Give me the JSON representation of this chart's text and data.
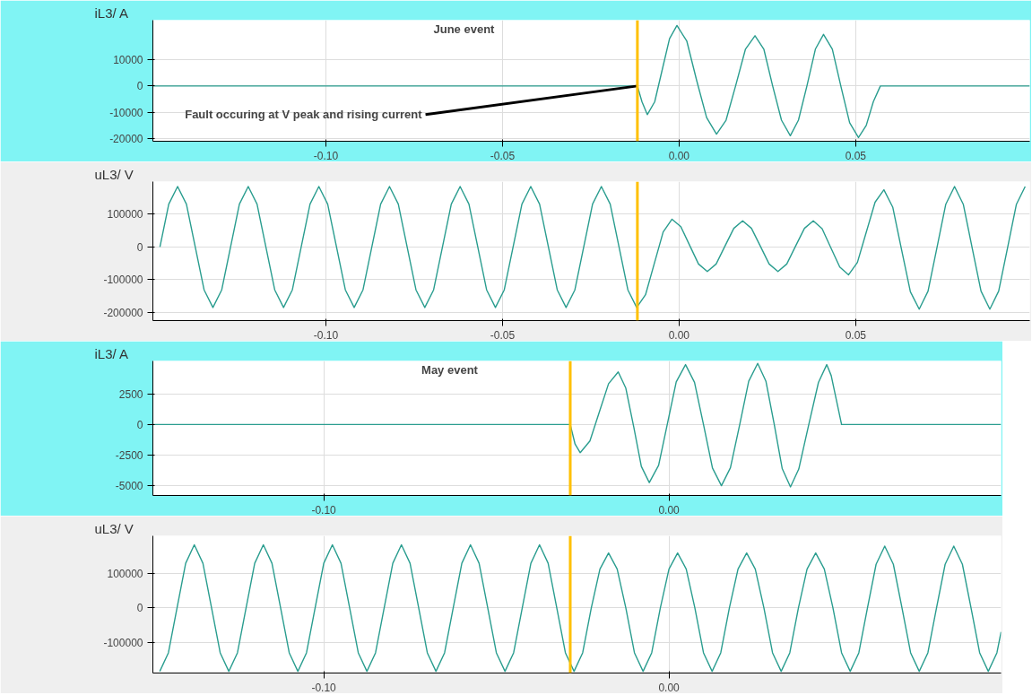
{
  "chart_data": [
    {
      "type": "line",
      "ylabel": "iL3/ A",
      "annotations": [
        "June event",
        {
          "text": "Fault occuring at V peak and rising current",
          "x": -0.0118,
          "y": 0
        }
      ],
      "xlim": [
        -0.149,
        0.0993
      ],
      "ylim": [
        -21000,
        25000
      ],
      "xticks": [
        {
          "value": -0.1,
          "label": "-0.10"
        },
        {
          "value": -0.05,
          "label": "-0.05"
        },
        {
          "value": 0,
          "label": "0.00"
        },
        {
          "value": 0.05,
          "label": "0.05"
        }
      ],
      "yticks": [
        10000,
        0,
        -10000,
        -20000
      ],
      "grid": true,
      "ref_lines": [
        {
          "axis": "x",
          "value": -0.0118,
          "color": "#ffc000"
        }
      ],
      "series": [
        {
          "color": "#2a9d8f",
          "x": [
            -0.149,
            -0.0118,
            -0.0105,
            -0.009,
            -0.0069,
            -0.0048,
            -0.0027,
            -0.0006,
            0.0022,
            0.005,
            0.0078,
            0.0106,
            0.0133,
            0.016,
            0.0188,
            0.0215,
            0.024,
            0.0265,
            0.029,
            0.0315,
            0.0338,
            0.0362,
            0.0386,
            0.0409,
            0.0434,
            0.0458,
            0.0483,
            0.0508,
            0.053,
            0.055,
            0.057,
            0.0993
          ],
          "values": [
            0,
            0,
            -6000,
            -10900,
            -6000,
            6000,
            18000,
            23000,
            17000,
            2000,
            -12000,
            -18300,
            -13000,
            0,
            14000,
            19100,
            14000,
            0,
            -13000,
            -18900,
            -13000,
            0,
            14000,
            19600,
            14000,
            0,
            -14000,
            -19600,
            -15000,
            -6000,
            0,
            0
          ]
        }
      ]
    },
    {
      "type": "line",
      "ylabel": "uL3/ V",
      "xlim": [
        -0.149,
        0.0993
      ],
      "ylim": [
        -225000,
        200000
      ],
      "xticks": [
        {
          "value": -0.1,
          "label": "-0.10"
        },
        {
          "value": -0.05,
          "label": "-0.05"
        },
        {
          "value": 0,
          "label": "0.00"
        },
        {
          "value": 0.05,
          "label": "0.05"
        }
      ],
      "yticks": [
        100000,
        0,
        -100000,
        -200000
      ],
      "grid": true,
      "ref_lines": [
        {
          "axis": "x",
          "value": -0.0118,
          "color": "#ffc000"
        }
      ],
      "series": [
        {
          "color": "#2a9d8f",
          "x": [
            -0.147,
            -0.1445,
            -0.142,
            -0.1395,
            -0.137,
            -0.1345,
            -0.132,
            -0.1295,
            -0.127,
            -0.1245,
            -0.122,
            -0.1195,
            -0.117,
            -0.1145,
            -0.112,
            -0.1095,
            -0.107,
            -0.1045,
            -0.102,
            -0.0995,
            -0.097,
            -0.0945,
            -0.092,
            -0.0895,
            -0.087,
            -0.0845,
            -0.082,
            -0.0795,
            -0.077,
            -0.0745,
            -0.072,
            -0.0695,
            -0.067,
            -0.0645,
            -0.062,
            -0.0595,
            -0.057,
            -0.0545,
            -0.052,
            -0.0495,
            -0.047,
            -0.0445,
            -0.042,
            -0.0395,
            -0.037,
            -0.0345,
            -0.032,
            -0.0295,
            -0.027,
            -0.0245,
            -0.022,
            -0.0195,
            -0.017,
            -0.0145,
            -0.012,
            -0.0095,
            -0.007,
            -0.0045,
            -0.002,
            0.0005,
            0.003,
            0.0055,
            0.008,
            0.0105,
            0.013,
            0.0155,
            0.018,
            0.0205,
            0.023,
            0.0255,
            0.028,
            0.0305,
            0.033,
            0.0355,
            0.038,
            0.0405,
            0.043,
            0.0455,
            0.048,
            0.0505,
            0.053,
            0.0555,
            0.058,
            0.0605,
            0.063,
            0.0655,
            0.068,
            0.0705,
            0.073,
            0.0755,
            0.078,
            0.0805,
            0.083,
            0.0855,
            0.088,
            0.0905,
            0.093,
            0.0955,
            0.098
          ],
          "values": [
            0,
            131000,
            185000,
            131000,
            0,
            -131000,
            -185000,
            -131000,
            0,
            131000,
            185000,
            131000,
            0,
            -131000,
            -185000,
            -131000,
            0,
            131000,
            185000,
            131000,
            0,
            -131000,
            -185000,
            -131000,
            0,
            131000,
            185000,
            131000,
            0,
            -131000,
            -185000,
            -131000,
            0,
            131000,
            185000,
            131000,
            0,
            -131000,
            -185000,
            -131000,
            0,
            131000,
            185000,
            131000,
            0,
            -131000,
            -185000,
            -131000,
            0,
            131000,
            185000,
            131000,
            0,
            -131000,
            -185000,
            -146000,
            -50000,
            46000,
            85000,
            62000,
            5000,
            -52000,
            -75000,
            -52000,
            3000,
            57000,
            80000,
            57000,
            3000,
            -52000,
            -75000,
            -52000,
            3000,
            57000,
            80000,
            56000,
            -3000,
            -61000,
            -85000,
            -47000,
            45000,
            137000,
            175000,
            122000,
            -8000,
            -137000,
            -190000,
            -135000,
            -3000,
            130000,
            185000,
            130000,
            -3000,
            -135000,
            -190000,
            -135000,
            -3000,
            130000,
            185000
          ]
        }
      ]
    },
    {
      "type": "line",
      "ylabel": "iL3/ A",
      "annotations": [
        "May event"
      ],
      "xlim": [
        -0.1495,
        0.0962
      ],
      "ylim": [
        -5800,
        5200
      ],
      "xticks": [
        {
          "value": -0.1,
          "label": "-0.10"
        },
        {
          "value": 0,
          "label": "0.00"
        }
      ],
      "yticks": [
        2500,
        0,
        -2500,
        -5000
      ],
      "grid": true,
      "ref_lines": [
        {
          "axis": "x",
          "value": -0.0286,
          "color": "#ffc000"
        }
      ],
      "series": [
        {
          "color": "#2a9d8f",
          "x": [
            -0.1495,
            -0.0286,
            -0.0272,
            -0.0257,
            -0.0229,
            -0.0202,
            -0.0175,
            -0.0147,
            -0.0125,
            -0.0102,
            -0.008,
            -0.0057,
            -0.003,
            -0.0005,
            0.0021,
            0.0048,
            0.0074,
            0.01,
            0.0126,
            0.0152,
            0.0178,
            0.0205,
            0.0231,
            0.0257,
            0.0281,
            0.0305,
            0.0328,
            0.0352,
            0.0376,
            0.0405,
            0.0433,
            0.0457,
            0.047,
            0.0485,
            0.05,
            0.0962
          ],
          "values": [
            0,
            0,
            -1600,
            -2300,
            -1340,
            1000,
            3340,
            4300,
            2980,
            -200,
            -3430,
            -4750,
            -3340,
            0,
            3490,
            4900,
            3450,
            0,
            -3550,
            -5000,
            -3540,
            0,
            3540,
            5000,
            3530,
            0,
            -3600,
            -5100,
            -3640,
            0,
            3440,
            4900,
            4000,
            2000,
            0,
            0
          ]
        }
      ]
    },
    {
      "type": "line",
      "ylabel": "uL3/ V",
      "xlim": [
        -0.1495,
        0.0962
      ],
      "ylim": [
        -190000,
        210000
      ],
      "xticks": [
        {
          "value": -0.1,
          "label": "-0.10"
        },
        {
          "value": 0,
          "label": "0.00"
        }
      ],
      "yticks": [
        100000,
        0,
        -100000
      ],
      "grid": true,
      "ref_lines": [
        {
          "axis": "x",
          "value": -0.0286,
          "color": "#ffc000"
        }
      ],
      "series": [
        {
          "color": "#2a9d8f",
          "x": [
            -0.1475,
            -0.145,
            -0.1425,
            -0.14,
            -0.1375,
            -0.135,
            -0.1325,
            -0.13,
            -0.1275,
            -0.125,
            -0.1225,
            -0.12,
            -0.1175,
            -0.115,
            -0.1125,
            -0.11,
            -0.1075,
            -0.105,
            -0.1025,
            -0.1,
            -0.0975,
            -0.095,
            -0.0925,
            -0.09,
            -0.0875,
            -0.085,
            -0.0825,
            -0.08,
            -0.0775,
            -0.075,
            -0.0725,
            -0.07,
            -0.0675,
            -0.065,
            -0.0625,
            -0.06,
            -0.0575,
            -0.055,
            -0.0525,
            -0.05,
            -0.0475,
            -0.045,
            -0.0425,
            -0.04,
            -0.0375,
            -0.035,
            -0.0325,
            -0.03,
            -0.0275,
            -0.025,
            -0.0225,
            -0.02,
            -0.0175,
            -0.015,
            -0.0125,
            -0.01,
            -0.0075,
            -0.005,
            -0.0025,
            0,
            0.0025,
            0.005,
            0.0075,
            0.01,
            0.0125,
            0.015,
            0.0175,
            0.02,
            0.0225,
            0.025,
            0.0275,
            0.03,
            0.0325,
            0.035,
            0.0375,
            0.04,
            0.0425,
            0.045,
            0.0475,
            0.05,
            0.0525,
            0.055,
            0.0575,
            0.06,
            0.0625,
            0.065,
            0.0675,
            0.07,
            0.0725,
            0.075,
            0.0775,
            0.08,
            0.0825,
            0.085,
            0.0875,
            0.09,
            0.0925,
            0.095,
            0.0962
          ],
          "values": [
            -185000,
            -131000,
            0,
            130000,
            184000,
            130000,
            0,
            -131000,
            -185000,
            -131000,
            0,
            130000,
            184000,
            130000,
            0,
            -131000,
            -185000,
            -131000,
            0,
            130000,
            184000,
            130000,
            0,
            -131000,
            -185000,
            -131000,
            0,
            130000,
            184000,
            130000,
            0,
            -131000,
            -185000,
            -131000,
            0,
            130000,
            184000,
            130000,
            0,
            -131000,
            -185000,
            -131000,
            0,
            130000,
            184000,
            130000,
            0,
            -131000,
            -185000,
            -131000,
            0,
            113000,
            160000,
            113000,
            0,
            -131000,
            -185000,
            -131000,
            0,
            113000,
            160000,
            113000,
            0,
            -131000,
            -185000,
            -131000,
            0,
            113000,
            160000,
            113000,
            0,
            -131000,
            -185000,
            -131000,
            0,
            113000,
            160000,
            113000,
            0,
            -131000,
            -185000,
            -131000,
            0,
            127000,
            180000,
            127000,
            0,
            -131000,
            -185000,
            -131000,
            0,
            127000,
            180000,
            127000,
            0,
            -131000,
            -185000,
            -131000,
            -70000
          ]
        }
      ]
    }
  ]
}
